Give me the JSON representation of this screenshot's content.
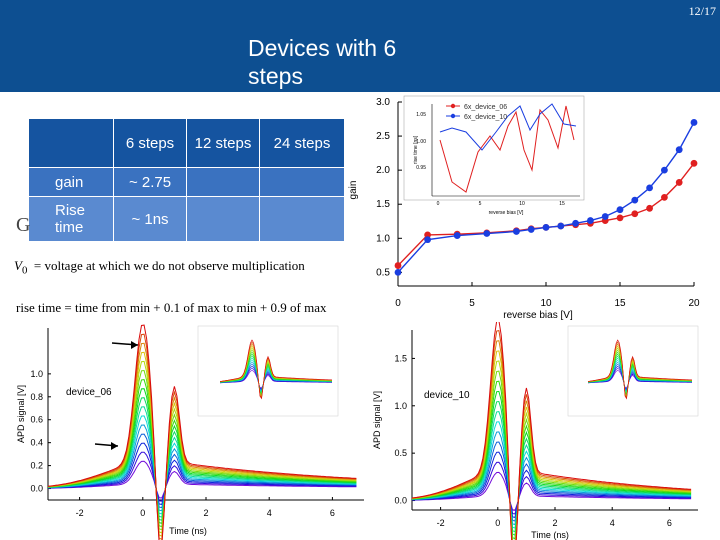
{
  "page_number": "12/17",
  "title": "Devices with 6 steps",
  "table": {
    "headers": [
      "",
      "6 steps",
      "12 steps",
      "24 steps"
    ],
    "rows": [
      {
        "label": "gain",
        "values": [
          "~ 2.75",
          "",
          ""
        ]
      },
      {
        "label": "Rise time",
        "values": [
          "~ 1ns",
          "",
          ""
        ]
      }
    ]
  },
  "partial_letter": "G",
  "v0_symbol": "V",
  "v0_subscript": "0",
  "v0_text": "=   voltage at which we do not observe multiplication",
  "risetime_text": "rise time = time from min + 0.1 of max to min + 0.9 of max",
  "colors": {
    "banner": "#0d4f91",
    "series_red": "#e02020",
    "series_blue": "#1a3ee0"
  },
  "chart_data": [
    {
      "type": "line",
      "title": "",
      "xlabel": "reverse bias [V]",
      "ylabel": "gain",
      "xlim": [
        0,
        20
      ],
      "ylim": [
        0.3,
        3.0
      ],
      "xticks": [
        "0",
        "5",
        "10",
        "15",
        "20"
      ],
      "yticks": [
        "0.5",
        "1.0",
        "1.5",
        "2.0",
        "2.5",
        "3.0"
      ],
      "legend": [
        "6x_device_06",
        "6x_device_10"
      ],
      "series": [
        {
          "name": "6x_device_06",
          "color": "#e02020",
          "x": [
            0,
            2,
            4,
            6,
            8,
            9,
            10,
            11,
            12,
            13,
            14,
            15,
            16,
            17,
            18,
            19,
            20
          ],
          "y": [
            0.6,
            1.05,
            1.06,
            1.08,
            1.11,
            1.14,
            1.16,
            1.18,
            1.2,
            1.22,
            1.26,
            1.3,
            1.36,
            1.44,
            1.6,
            1.82,
            2.1
          ]
        },
        {
          "name": "6x_device_10",
          "color": "#1a3ee0",
          "x": [
            0,
            2,
            4,
            6,
            8,
            9,
            10,
            11,
            12,
            13,
            14,
            15,
            16,
            17,
            18,
            19,
            20
          ],
          "y": [
            0.5,
            0.98,
            1.04,
            1.07,
            1.1,
            1.13,
            1.16,
            1.18,
            1.22,
            1.26,
            1.32,
            1.42,
            1.56,
            1.74,
            2.0,
            2.3,
            2.7
          ]
        }
      ]
    },
    {
      "type": "line",
      "title": "",
      "xlabel": "reverse bias [V]",
      "ylabel": "rise time [ns]",
      "xticks": [
        "0",
        "5",
        "10",
        "15"
      ],
      "yticks": [
        "0.95",
        "1.00",
        "1.05"
      ]
    },
    {
      "type": "line",
      "title": "device_06",
      "xlabel": "Time (ns)",
      "ylabel": "APD signal [V]",
      "xlim": [
        -3,
        7
      ],
      "ylim": [
        -0.1,
        1.4
      ],
      "xticks": [
        "-2",
        "0",
        "2",
        "4",
        "6"
      ],
      "yticks": [
        "0.0",
        "0.2",
        "0.4",
        "0.6",
        "0.8",
        "1.0"
      ],
      "curve_count": 16
    },
    {
      "type": "line",
      "title": "device_10",
      "xlabel": "Time (ns)",
      "ylabel": "APD signal [V]",
      "xlim": [
        -3,
        7
      ],
      "ylim": [
        -0.1,
        1.8
      ],
      "xticks": [
        "-2",
        "0",
        "2",
        "4",
        "6"
      ],
      "yticks": [
        "0.0",
        "0.5",
        "1.0",
        "1.5"
      ],
      "curve_count": 16
    }
  ]
}
